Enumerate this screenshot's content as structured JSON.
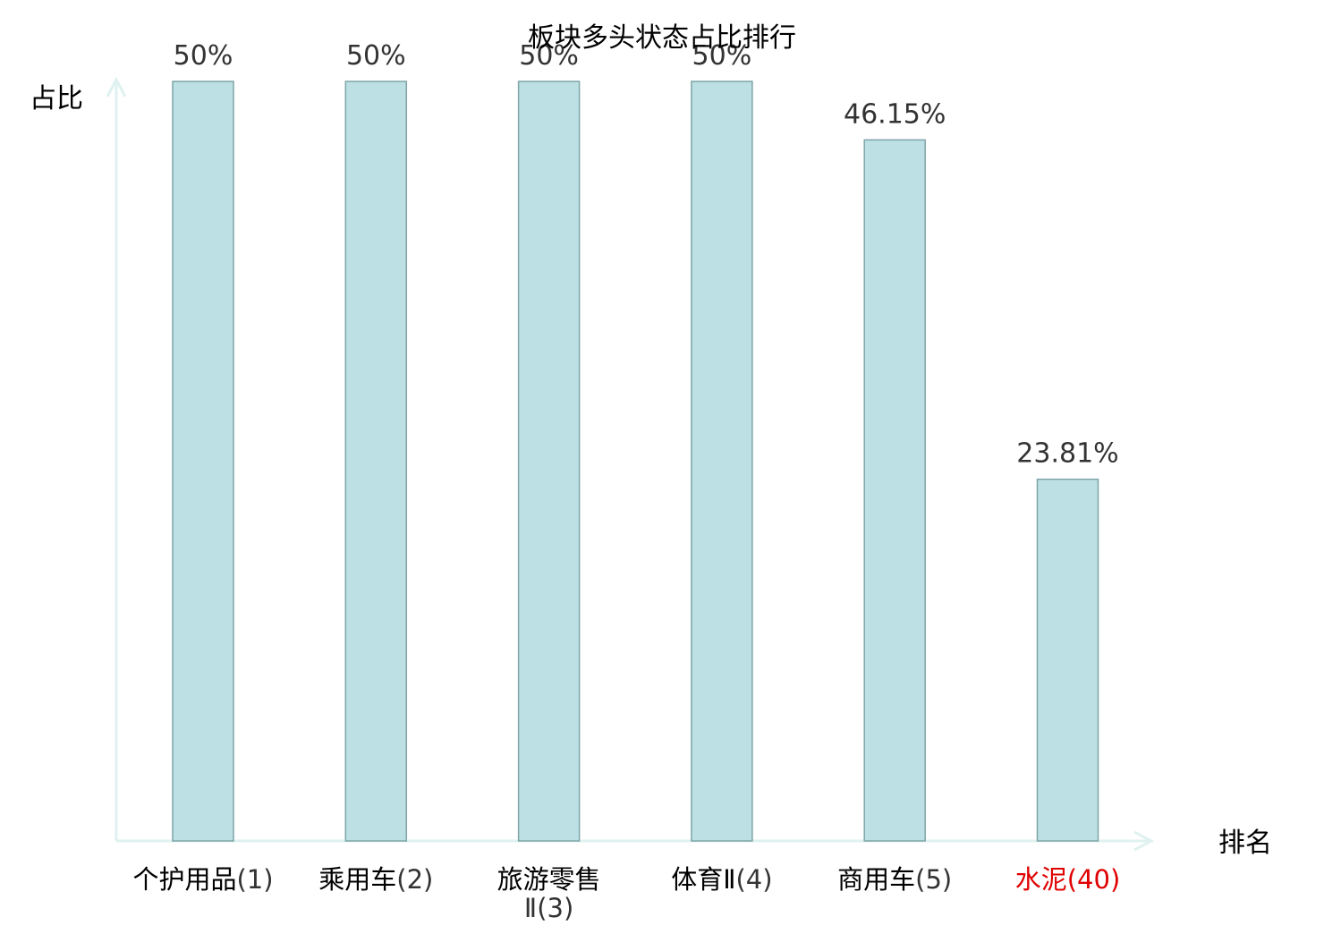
{
  "chart_data": {
    "type": "bar",
    "title": "板块多头状态占比排行",
    "xlabel": "排名",
    "ylabel": "占比",
    "categories": [
      {
        "name": "个护用品",
        "rank": "(1)",
        "highlight": false
      },
      {
        "name": "乘用车",
        "rank": "(2)",
        "highlight": false
      },
      {
        "name": "旅游零售Ⅱ",
        "rank": "(3)",
        "highlight": false
      },
      {
        "name": "体育Ⅱ",
        "rank": "(4)",
        "highlight": false
      },
      {
        "name": "商用车",
        "rank": "(5)",
        "highlight": false
      },
      {
        "name": "水泥",
        "rank": "(40)",
        "highlight": true
      }
    ],
    "values": [
      50,
      50,
      50,
      50,
      46.15,
      23.81
    ],
    "value_labels": [
      "50%",
      "50%",
      "50%",
      "50%",
      "46.15%",
      "23.81%"
    ],
    "ylim": [
      0,
      50
    ],
    "grid": false,
    "colors": {
      "bar_fill": "#bce0e3",
      "bar_stroke": "#7fa5a9",
      "axis": "#dff2ef",
      "highlight_label": "#e00000",
      "label": "#000000",
      "rank": "#333333"
    }
  }
}
